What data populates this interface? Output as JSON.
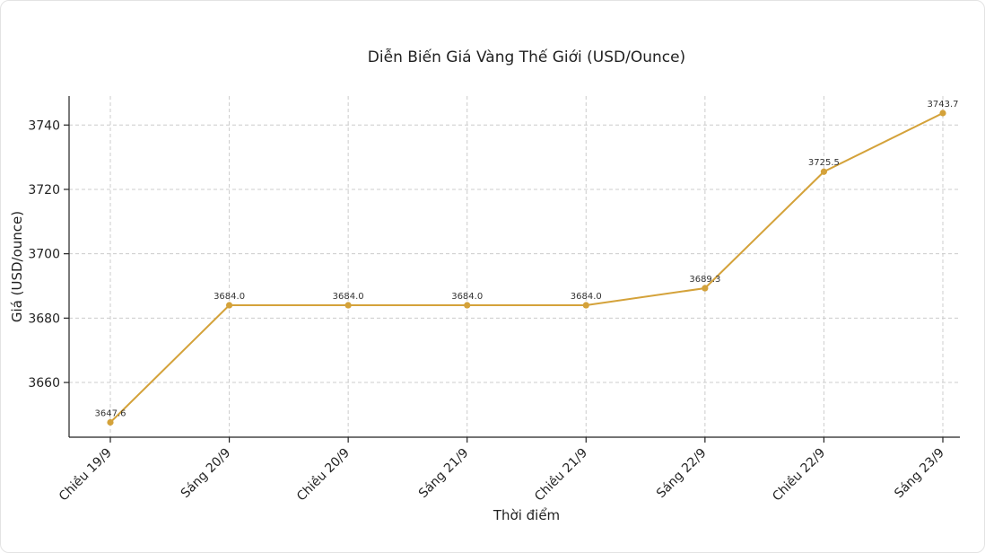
{
  "chart_data": {
    "type": "line",
    "title": "Diễn Biến Giá Vàng Thế Giới (USD/Ounce)",
    "xlabel": "Thời điểm",
    "ylabel": "Giá (USD/ounce)",
    "categories": [
      "Chiều 19/9",
      "Sáng 20/9",
      "Chiều 20/9",
      "Sáng 21/9",
      "Chiều 21/9",
      "Sáng 22/9",
      "Chiều 22/9",
      "Sáng 23/9"
    ],
    "series": [
      {
        "values": [
          3647.6,
          3684.0,
          3684.0,
          3684.0,
          3684.0,
          3689.3,
          3725.5,
          3743.7
        ],
        "data_labels": [
          "3647.6",
          "3684.0",
          "3684.0",
          "3684.0",
          "3684.0",
          "3689.3",
          "3725.5",
          "3743.7"
        ],
        "color": "#d4a23a"
      }
    ],
    "ylim": [
      3643,
      3749
    ],
    "yticks": [
      3660,
      3680,
      3700,
      3720,
      3740
    ],
    "grid": true,
    "legend": "none"
  }
}
